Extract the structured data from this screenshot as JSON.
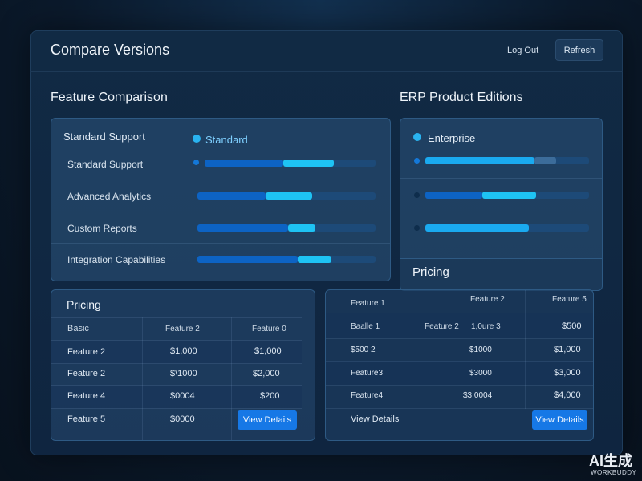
{
  "header": {
    "title": "Compare Versions",
    "logout_label": "Log Out",
    "refresh_label": "Refresh"
  },
  "feature_comparison": {
    "title": "Feature Comparison",
    "panel_label": "Standard Support",
    "legend_label": "Standard",
    "rows": [
      {
        "label": "Standard Support",
        "bar_a": 0.48,
        "bar_b": 0.28
      },
      {
        "label": "Advanced Analytics",
        "bar_a": 0.38,
        "bar_b": 0.26
      },
      {
        "label": "Custom Reports",
        "bar_a": 0.51,
        "bar_b": 0.15
      },
      {
        "label": "Integration Capabilities",
        "bar_a": 0.56,
        "bar_b": 0.19
      }
    ]
  },
  "erp_editions": {
    "title": "ERP Product Editions",
    "legend_label": "Enterprise",
    "rows": [
      {
        "bar_a": 0.0,
        "bar_b": 0.66,
        "tail": 0.11
      },
      {
        "bar_a": 0.35,
        "bar_b": 0.33
      },
      {
        "bar_a": 0.0,
        "bar_b": 0.63
      }
    ]
  },
  "pricing_left": {
    "title": "Pricing",
    "headers": [
      "Basic",
      "Feature 2",
      "Feature 0"
    ],
    "rows": [
      [
        "Feature 2",
        "$1,000",
        "$1,000"
      ],
      [
        "Feature 2",
        "$\\1000",
        "$2,000"
      ],
      [
        "Feature 4",
        "$0004",
        "$200"
      ],
      [
        "Feature 5",
        "$0000",
        ""
      ]
    ],
    "button_label": "View Details"
  },
  "pricing_right": {
    "title": "Pricing",
    "headers": [
      "Feature 1",
      "Feature 2",
      "Feature 5"
    ],
    "rows": [
      [
        "Baalle 1",
        "Feature 2",
        "1,0ure 3",
        "$500"
      ],
      [
        "$500 2",
        "",
        "$1000",
        "$1,000"
      ],
      [
        "Feature3",
        "",
        "$3000",
        "$3,000"
      ],
      [
        "Feature4",
        "",
        "$3,0004",
        "$4,000"
      ],
      [
        "View Details",
        "",
        "",
        ""
      ]
    ],
    "button_label": "View Details"
  },
  "watermark": {
    "main": "AI生成",
    "sub": "WORKBUDDY"
  },
  "colors": {
    "accent": "#1678e6",
    "bar_dark": "#0d63c4",
    "bar_light": "#1ec3f4",
    "legend_dot": "#29b3f0"
  }
}
